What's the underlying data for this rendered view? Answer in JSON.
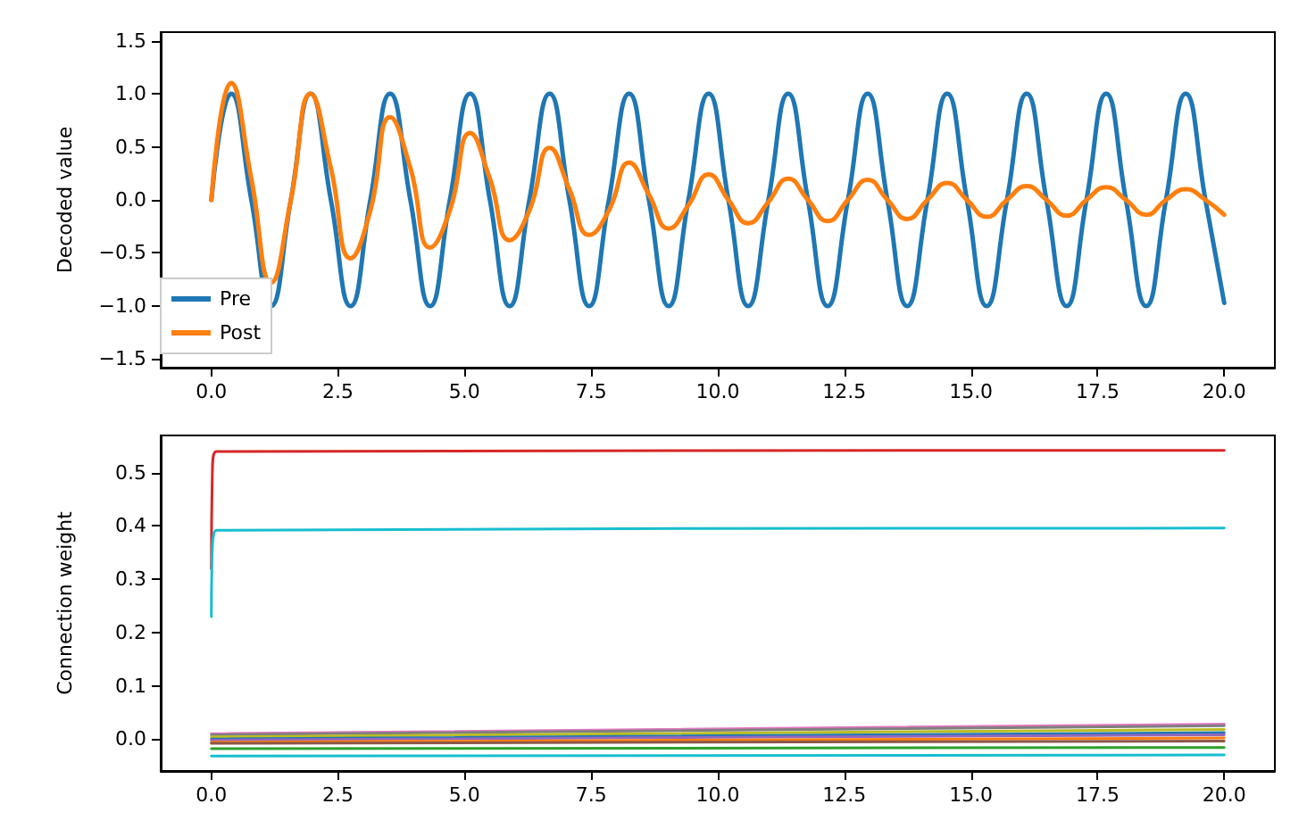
{
  "chart_data": [
    {
      "type": "line",
      "ylabel": "Decoded value",
      "legend": "bottom left",
      "grid": false,
      "marker": "none",
      "line_style": "solid",
      "xlim": [
        -1,
        21
      ],
      "ylim": [
        -1.58,
        1.58
      ],
      "xticks": [
        {
          "value": 0,
          "label": "0.0"
        },
        {
          "value": 2.5,
          "label": "2.5"
        },
        {
          "value": 5,
          "label": "5.0"
        },
        {
          "value": 7.5,
          "label": "7.5"
        },
        {
          "value": 10,
          "label": "10.0"
        },
        {
          "value": 12.5,
          "label": "12.5"
        },
        {
          "value": 15,
          "label": "15.0"
        },
        {
          "value": 17.5,
          "label": "17.5"
        },
        {
          "value": 20,
          "label": "20.0"
        }
      ],
      "yticks": [
        {
          "value": -1.5,
          "label": "−1.5"
        },
        {
          "value": -1,
          "label": "−1.0"
        },
        {
          "value": -0.5,
          "label": "−0.5"
        },
        {
          "value": 0,
          "label": "0.0"
        },
        {
          "value": 0.5,
          "label": "0.5"
        },
        {
          "value": 1,
          "label": "1.0"
        },
        {
          "value": 1.5,
          "label": "1.5"
        }
      ],
      "x": [
        0,
        0.39,
        0.79,
        1.18,
        1.57,
        1.96,
        2.36,
        2.75,
        3.14,
        3.53,
        3.93,
        4.32,
        4.71,
        5.11,
        5.5,
        5.89,
        6.28,
        6.68,
        7.07,
        7.46,
        7.85,
        8.25,
        8.64,
        9.03,
        9.42,
        9.82,
        10.21,
        10.6,
        11,
        11.39,
        11.78,
        12.17,
        12.57,
        12.96,
        13.35,
        13.74,
        14.14,
        14.53,
        14.92,
        15.31,
        15.71,
        16.1,
        16.49,
        16.89,
        17.28,
        17.67,
        18.06,
        18.46,
        18.85,
        19.24,
        19.63,
        20
      ],
      "series": [
        {
          "name": "Pre",
          "color": "#1f77b4",
          "values": [
            0,
            1,
            0,
            -1,
            0,
            1,
            0,
            -1,
            0,
            1,
            0,
            -1,
            0,
            1,
            0,
            -1,
            0,
            1,
            0,
            -1,
            0,
            1,
            0,
            -1,
            0,
            1,
            0,
            -1,
            0,
            1,
            0,
            -1,
            0,
            1,
            0,
            -1,
            0,
            1,
            0,
            -1,
            0,
            1,
            0,
            -1,
            0,
            1,
            0,
            -1,
            0,
            1,
            0,
            -0.97
          ]
        },
        {
          "name": "Post",
          "color": "#ff7f0e",
          "values": [
            0,
            1.1,
            0.2,
            -0.78,
            0,
            1,
            0.3,
            -0.55,
            -0.1,
            0.78,
            0.3,
            -0.45,
            -0.1,
            0.63,
            0.2,
            -0.38,
            -0.1,
            0.49,
            0.1,
            -0.33,
            -0.1,
            0.35,
            0.05,
            -0.27,
            -0.05,
            0.24,
            0,
            -0.22,
            -0.02,
            0.2,
            0,
            -0.2,
            0,
            0.19,
            0,
            -0.18,
            0,
            0.16,
            0,
            -0.16,
            0,
            0.13,
            0,
            -0.15,
            0,
            0.12,
            0,
            -0.14,
            0,
            0.1,
            0,
            -0.14
          ]
        }
      ]
    },
    {
      "type": "line",
      "ylabel": "Connection weight",
      "grid": false,
      "marker": "none",
      "line_style": "solid",
      "xlim": [
        -1,
        21
      ],
      "ylim": [
        -0.06,
        0.57
      ],
      "xticks": [
        {
          "value": 0,
          "label": "0.0"
        },
        {
          "value": 2.5,
          "label": "2.5"
        },
        {
          "value": 5,
          "label": "5.0"
        },
        {
          "value": 7.5,
          "label": "7.5"
        },
        {
          "value": 10,
          "label": "10.0"
        },
        {
          "value": 12.5,
          "label": "12.5"
        },
        {
          "value": 15,
          "label": "15.0"
        },
        {
          "value": 17.5,
          "label": "17.5"
        },
        {
          "value": 20,
          "label": "20.0"
        }
      ],
      "yticks": [
        {
          "value": 0,
          "label": "0.0"
        },
        {
          "value": 0.1,
          "label": "0.1"
        },
        {
          "value": 0.2,
          "label": "0.2"
        },
        {
          "value": 0.3,
          "label": "0.3"
        },
        {
          "value": 0.4,
          "label": "0.4"
        },
        {
          "value": 0.5,
          "label": "0.5"
        }
      ],
      "series": [
        {
          "color": "#d62728",
          "x": [
            0,
            0.02,
            0.1,
            20
          ],
          "values": [
            0.32,
            0.5,
            0.54,
            0.542
          ]
        },
        {
          "color": "#17becf",
          "x": [
            0,
            0.01,
            0.1,
            20
          ],
          "values": [
            0.23,
            0.32,
            0.392,
            0.396
          ]
        },
        {
          "color": "#e377c2",
          "x": [
            0,
            20
          ],
          "values": [
            0.01,
            0.028
          ]
        },
        {
          "color": "#7f7f7f",
          "x": [
            0,
            20
          ],
          "values": [
            0.008,
            0.025
          ]
        },
        {
          "color": "#bcbd22",
          "x": [
            0,
            20
          ],
          "values": [
            0.004,
            0.018
          ]
        },
        {
          "color": "#1f77b4",
          "x": [
            0,
            20
          ],
          "values": [
            0,
            0.012
          ]
        },
        {
          "color": "#9467bd",
          "x": [
            0,
            20
          ],
          "values": [
            -0.002,
            0.008
          ]
        },
        {
          "color": "#ff7f0e",
          "x": [
            0,
            20
          ],
          "values": [
            -0.006,
            0.002
          ]
        },
        {
          "color": "#8c564b",
          "x": [
            0,
            20
          ],
          "values": [
            -0.008,
            -0.004
          ]
        },
        {
          "color": "#2ca02c",
          "x": [
            0,
            20
          ],
          "values": [
            -0.018,
            -0.016
          ]
        },
        {
          "color": "#17becf",
          "x": [
            0,
            20
          ],
          "values": [
            -0.032,
            -0.03
          ]
        }
      ]
    }
  ]
}
